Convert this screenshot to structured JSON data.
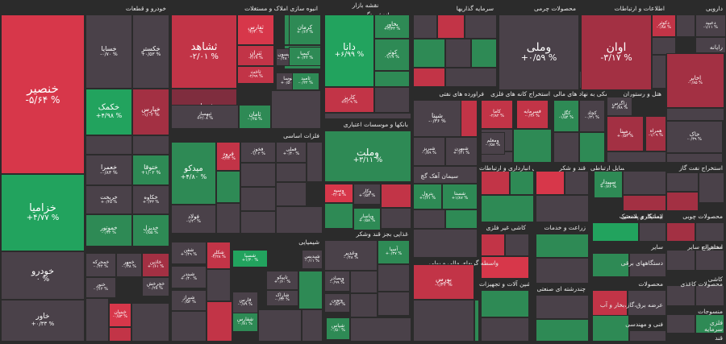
{
  "title": "نقشه بازار",
  "colors": {
    "rd4": "#d7374a",
    "rd3": "#c23447",
    "rd2": "#a33043",
    "rd1": "#7f2d3e",
    "nt": "#4a4149",
    "gr1": "#2c6a46",
    "gr2": "#2e8a55",
    "gr3": "#22a35e",
    "gr4": "#19c36a"
  },
  "sectors": [
    "خودرو و قطعات",
    "انبوه سازی املاک و مستغلات",
    "بیمه و بازنشستگی",
    "سرمایه گذاریها",
    "محصولات چرمی",
    "اطلاعات و ارتباطات",
    "دارویی",
    "فلزات اساسی",
    "بانکها و موسسات اعتباری",
    "فراورده های نفتی",
    "استخراج کانه های فلزی",
    "فعالیتهای کمکی به نهاد های مالی",
    "هتل و رستوران",
    "رایانه",
    "شیمیایی",
    "سیمان آهک گچ",
    "حمل و نقل انبارداری و ارتباطات",
    "قند و شکر",
    "وسایل ارتباطی",
    "استخراج نفت گاز",
    "غذایی بجز قند وشکر",
    "کاشی غیر فلزی",
    "زراعت و خدمات",
    "لاستیک و پلاستیک",
    "بیمانکاری صنعتی",
    "محصولات چوبی",
    "واسطه گریهای مالی و پولی",
    "مخابرات",
    "ماشین آلات و تجهیزات",
    "محصولات کاغذی",
    "چندرشته ای صنعتی",
    "دستگاههای برقی",
    "محصولات",
    "کاشی",
    "سایر",
    "منسوجات",
    "عرضه برق،گاز،بخار و آب",
    "فنی و مهندسی",
    "فلزی",
    "قند",
    "سرمایه",
    "استخراج سایر"
  ],
  "tiles": [
    {
      "name": "خنصیر",
      "change": "-۵/۶۴ %"
    },
    {
      "name": "خزامیا",
      "change": "+۴/۷۷ %"
    },
    {
      "name": "خودرو",
      "change": "۰ %"
    },
    {
      "name": "خاور",
      "change": "+۰/۳۳ %"
    },
    {
      "name": "خسایا",
      "change": "-۰/۷۰ %"
    },
    {
      "name": "خکستر",
      "change": "+۰/۵۳ %"
    },
    {
      "name": "خکمک",
      "change": "+۴/۹۸ %"
    },
    {
      "name": "خپارس",
      "change": "-۱/۰۲ %"
    },
    {
      "name": "خعمرا",
      "change": "-۰/۸۳ %"
    },
    {
      "name": "ختوقا",
      "change": "+۱/۰۲ %"
    },
    {
      "name": "خریخت",
      "change": "+۰/۴۵ %"
    },
    {
      "name": "خکاوه",
      "change": "+۰/۳۳ %"
    },
    {
      "name": "خموتور",
      "change": "-۰/۴۲ %"
    },
    {
      "name": "خدیزل",
      "change": "-۱/۵۵ %"
    },
    {
      "name": "خمحرکه",
      "change": "-۰/۴۴ %"
    },
    {
      "name": "خمهر",
      "change": "-۰/۳۸ %"
    },
    {
      "name": "خاذین",
      "change": "+۰/۶۱ %"
    },
    {
      "name": "خچرخش",
      "change": "-۰/۲۸ %"
    },
    {
      "name": "خنور",
      "change": "-۰/۱۲ %"
    },
    {
      "name": "خبنیان",
      "change": "-۰/۵۳ %"
    },
    {
      "name": "ثشاهد",
      "change": "-۲/۰۱ %"
    },
    {
      "name": "ثفارس",
      "change": "-۲/۴۰ %"
    },
    {
      "name": "ثعمران",
      "change": "+۰/۸۳ %"
    },
    {
      "name": "ثتران",
      "change": "-۳/۱۷ %"
    },
    {
      "name": "ثباغ",
      "change": "+۰/۳۸ %"
    },
    {
      "name": "ثاخت",
      "change": "-۲/۹۹ %"
    },
    {
      "name": "ثنوسا",
      "change": "+۰/۵۰ %"
    },
    {
      "name": "ثامید",
      "change": "-۰/۲۲ %"
    },
    {
      "name": "ثتهران",
      "change": "-۰/۴۳ %"
    },
    {
      "name": "ثامان",
      "change": "-۰/۴۵ %"
    },
    {
      "name": "دانا",
      "change": "+۶/۹۹ %"
    },
    {
      "name": "بخاور",
      "change": "+۳/۳۳ %"
    },
    {
      "name": "کوثر",
      "change": "-۱/۱۷ %"
    },
    {
      "name": "کاریز",
      "change": "+۳/۰۹ %"
    },
    {
      "name": "وملی",
      "change": "+۰/۵۹ %"
    },
    {
      "name": "اوان",
      "change": "-۳/۱۷ %"
    },
    {
      "name": "دکوثر",
      "change": "-۰/۸۸ %"
    },
    {
      "name": "دعبید",
      "change": "-۱/۱۱ %"
    },
    {
      "name": "وملت",
      "change": "+۳/۱۱ %"
    },
    {
      "name": "فرود",
      "change": "-۳/۲۲ %"
    },
    {
      "name": "فخوز",
      "change": "-۱/۰۲ %"
    },
    {
      "name": "فملی",
      "change": "+۰/۴۰ %"
    },
    {
      "name": "میدکو",
      "change": "+۴/۸۰ %"
    },
    {
      "name": "فولاد",
      "change": "-۱/۲۰ %"
    },
    {
      "name": "وسپه",
      "change": "-۳/۰۵ %"
    },
    {
      "name": "وکار",
      "change": "+۰/۵۲ %"
    },
    {
      "name": "وپاسار",
      "change": "+۰/۵۸ %"
    },
    {
      "name": "شپنا",
      "change": "-۰/۳۶ %"
    },
    {
      "name": "شبریز",
      "change": "-۰/۸۹ %"
    },
    {
      "name": "شبهرن",
      "change": "+۰/۲۱ %"
    },
    {
      "name": "کگل",
      "change": "-۱/۵۴ %"
    },
    {
      "name": "کچاد",
      "change": "-۰/۳۱ %"
    },
    {
      "name": "کاما",
      "change": "-۲/۸۲ %"
    },
    {
      "name": "فغدیر",
      "change": "+۰/۶۱ %"
    },
    {
      "name": "فسرمایه",
      "change": "-۰/۴۶ %"
    },
    {
      "name": "کیسون",
      "change": "-۰/۴۸ %"
    },
    {
      "name": "زاگرس",
      "change": "+۰/۷۸ %"
    },
    {
      "name": "شفن",
      "change": "+۰/۴۹ %"
    },
    {
      "name": "شکلر",
      "change": "-۲/۲۸ %"
    },
    {
      "name": "شسپا",
      "change": "+۱/۳۰ %"
    },
    {
      "name": "فارس",
      "change": "-۰/۷۹ %"
    },
    {
      "name": "شپدیس",
      "change": "-۰/۱۱ %"
    },
    {
      "name": "شبندر",
      "change": "+۰/۴۰ %"
    },
    {
      "name": "شفارس",
      "change": "-۰/۸۱ %"
    },
    {
      "name": "تاپیکو",
      "change": "+۰/۶۰ %"
    },
    {
      "name": "شاراک",
      "change": "-۰/۳۴ %"
    },
    {
      "name": "شیراز",
      "change": "-۰/۵۲ %"
    },
    {
      "name": "وغدیر",
      "change": "-۰/۴۸ %"
    },
    {
      "name": "وبصادر",
      "change": "-۰/۹۹ %"
    },
    {
      "name": "ونوین",
      "change": "+۰/۸۳ %"
    },
    {
      "name": "آسیا",
      "change": "+۰/۳۷ %"
    },
    {
      "name": "ومعلم",
      "change": "-۰/۵۸ %"
    },
    {
      "name": "کرمان",
      "change": "+۰/۶۶ %"
    },
    {
      "name": "کیمیا",
      "change": "+۰/۴۴ %"
    },
    {
      "name": "اخابر",
      "change": "-۰/۸۵ %"
    },
    {
      "name": "رمپنا",
      "change": "+۰/۵۳ %"
    },
    {
      "name": "همراه",
      "change": "-۱/۰۹ %"
    },
    {
      "name": "سپیدار",
      "change": "+۰/۷۶ %"
    },
    {
      "name": "خاک",
      "change": "-۰/۳۹ %"
    },
    {
      "name": "پترول",
      "change": "+۱/۶۱ %"
    },
    {
      "name": "شستا",
      "change": "+۱/۸۷ %"
    },
    {
      "name": "شپاس",
      "change": "-۰/۵۰ %"
    },
    {
      "name": "بورس",
      "change": "-۱/۴۲ %"
    },
    {
      "name": "ثبهساز",
      "change": "+۲/۰۸ %"
    }
  ]
}
